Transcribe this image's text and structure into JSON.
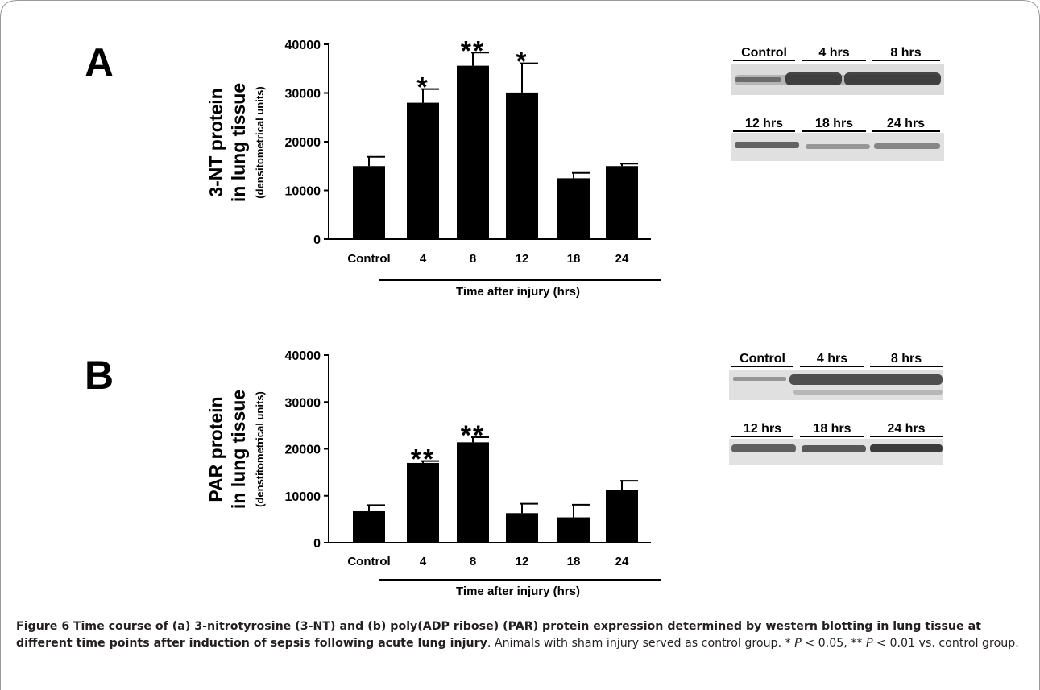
{
  "panels": [
    {
      "letter": "A",
      "ylabel_line1": "3-NT protein",
      "ylabel_line2": "in lung tissue",
      "ylabel_units": "(densitometrical units)",
      "xlabel": "Time after injury (hrs)",
      "blot_labels_top": [
        "Control",
        "4 hrs",
        "8 hrs"
      ],
      "blot_labels_bottom": [
        "12 hrs",
        "18 hrs",
        "24 hrs"
      ]
    },
    {
      "letter": "B",
      "ylabel_line1": "PAR protein",
      "ylabel_line2": "in lung tissue",
      "ylabel_units": "(denstitometrical units)",
      "xlabel": "Time after injury (hrs)",
      "blot_labels_top": [
        "Control",
        "4 hrs",
        "8 hrs"
      ],
      "blot_labels_bottom": [
        "12 hrs",
        "18 hrs",
        "24 hrs"
      ]
    }
  ],
  "chart_data": [
    {
      "type": "bar",
      "categories": [
        "Control",
        "4",
        "8",
        "12",
        "18",
        "24"
      ],
      "values": [
        15000,
        28000,
        35600,
        30100,
        12500,
        15000
      ],
      "errors": [
        1900,
        2800,
        2700,
        6000,
        1100,
        500
      ],
      "annotations": [
        "",
        "*",
        "**",
        "*",
        "",
        ""
      ],
      "yticks": [
        "0",
        "10000",
        "20000",
        "30000",
        "40000"
      ],
      "ylim": [
        0,
        40000
      ],
      "xlabel": "Time after injury (hrs)",
      "ylabel": "3-NT protein in lung tissue (densitometrical units)"
    },
    {
      "type": "bar",
      "categories": [
        "Control",
        "4",
        "8",
        "12",
        "18",
        "24"
      ],
      "values": [
        6700,
        17000,
        21400,
        6300,
        5400,
        11200
      ],
      "errors": [
        1300,
        400,
        1100,
        2000,
        2700,
        2000
      ],
      "annotations": [
        "",
        "**",
        "**",
        "",
        "",
        ""
      ],
      "yticks": [
        "0",
        "10000",
        "20000",
        "30000",
        "40000"
      ],
      "ylim": [
        0,
        40000
      ],
      "xlabel": "Time after injury (hrs)",
      "ylabel": "PAR protein in lung tissue (denstitometrical units)"
    }
  ],
  "caption": {
    "figure_label": "Figure 6",
    "bold_text": "Time course of (a) 3-nitrotyrosine (3-NT) and (b) poly(ADP ribose) (PAR) protein expression determined by western blotting in lung tissue at different time points after induction of sepsis following acute lung injury",
    "text_1": ". Animals with sham injury served as control group. * ",
    "p1": "P",
    "text_2": " < 0.05, ** ",
    "p2": "P",
    "text_3": " < 0.01 vs. control group."
  },
  "colors": {
    "bar": "#000000",
    "frame": "#9a9a9a",
    "text": "#231f20",
    "blot_band": "#2a2a2a",
    "blot_bg": "#d8d8d8"
  }
}
